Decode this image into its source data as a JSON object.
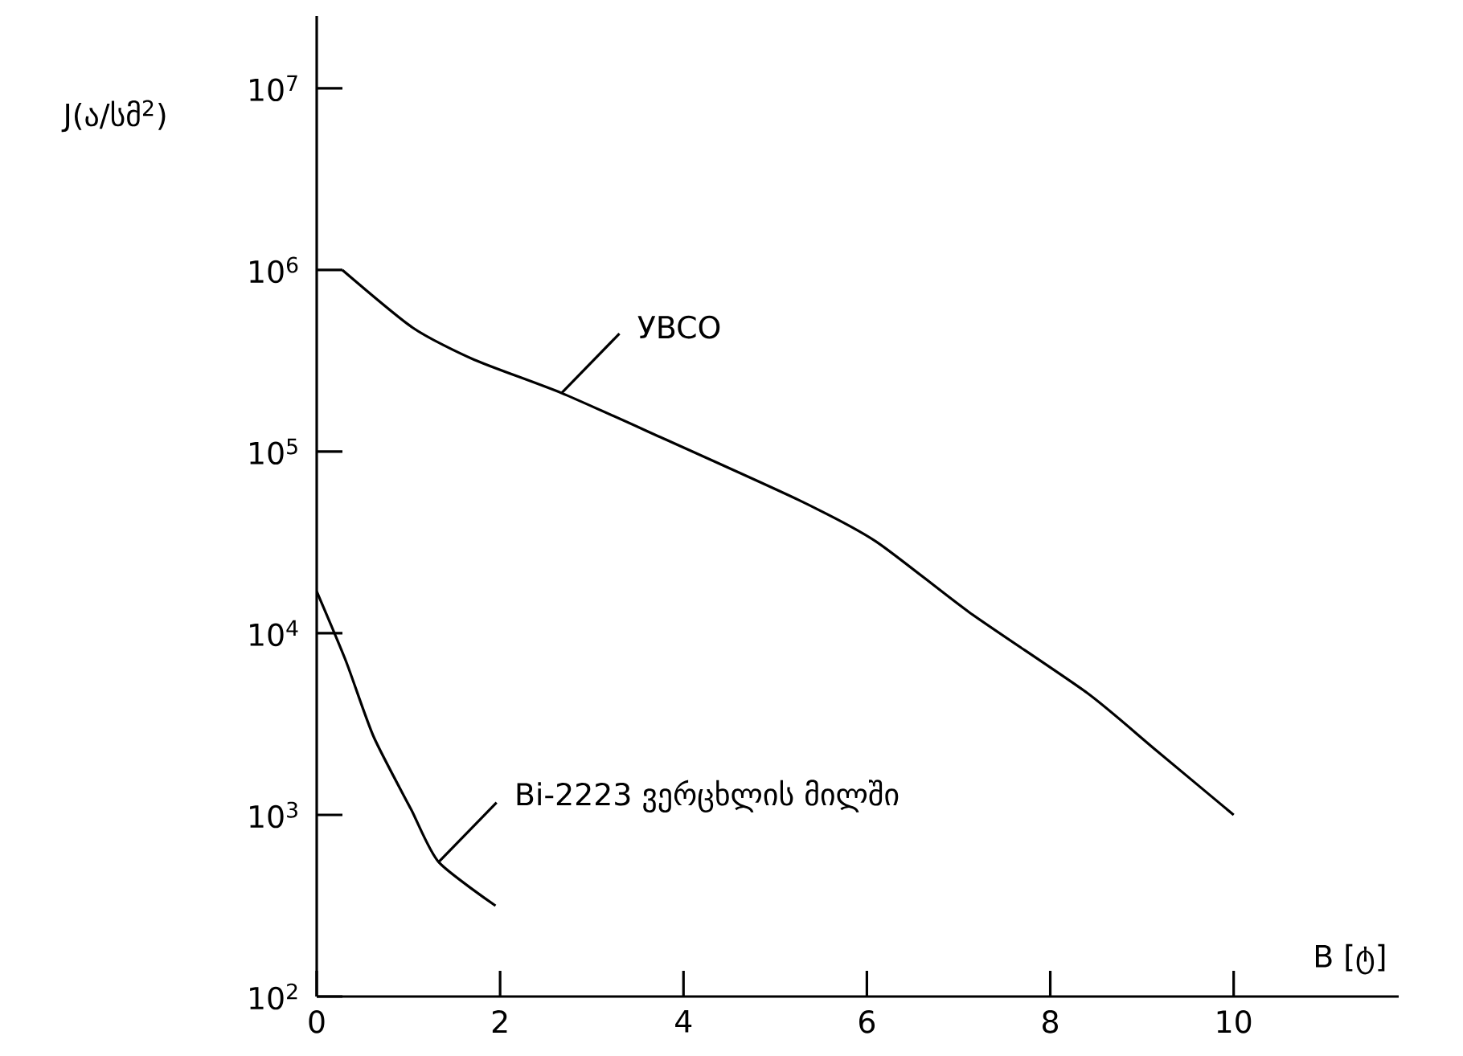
{
  "chart_data": {
    "type": "line",
    "xlabel": "B [ტ]",
    "ylabel": "J(ა/სმ$^{2}$)",
    "log": "y",
    "xlim": [
      0,
      11.8
    ],
    "ylim": [
      100,
      25000000
    ],
    "xticks": [
      0,
      2,
      4,
      6,
      8,
      10
    ],
    "yticks": [
      {
        "value": 100,
        "label": "10$^{2}$"
      },
      {
        "value": 1000,
        "label": "10$^{3}$"
      },
      {
        "value": 10000,
        "label": "10$^{4}$"
      },
      {
        "value": 100000,
        "label": "10$^{5}$"
      },
      {
        "value": 1000000,
        "label": "10$^{6}$"
      },
      {
        "value": 10000000,
        "label": "10$^{7}$"
      }
    ],
    "grid": false,
    "marker": "none",
    "line_style": "solid",
    "series": [
      {
        "color": "#000000",
        "x": [
          0.28,
          1.05,
          1.72,
          2.67,
          3.75,
          5.26,
          6.1,
          7.12,
          8.4,
          9.14,
          10.0
        ],
        "values": [
          1000000,
          480000,
          320000,
          210000,
          120000,
          54000,
          32000,
          13000,
          4700,
          2300,
          1000
        ]
      },
      {
        "color": "#000000",
        "x": [
          0,
          0.32,
          0.62,
          1.03,
          1.33,
          1.95
        ],
        "values": [
          17000,
          7000,
          2700,
          1070,
          550,
          316
        ]
      }
    ],
    "annotations": [
      {
        "text": "УBCO",
        "x": 2.67,
        "y": 210000
      },
      {
        "text": "Bi-2223 ვერცხლის მილში",
        "x": 1.33,
        "y": 550
      }
    ]
  }
}
